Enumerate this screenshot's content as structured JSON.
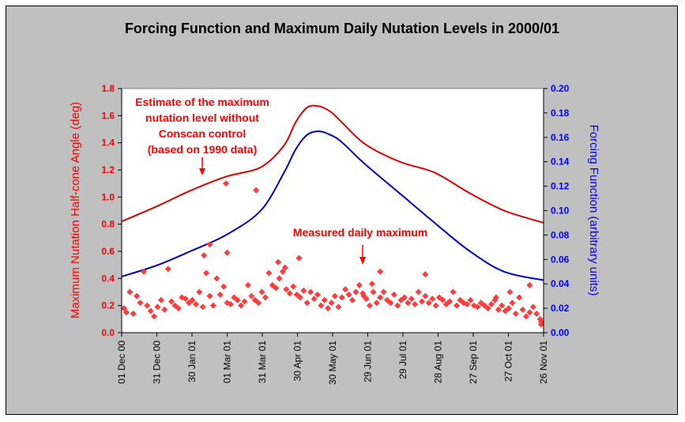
{
  "chart_data": {
    "type": "line",
    "title": "Forcing Function and Maximum Daily Nutation Levels in 2000/01",
    "ylabel_left": "Maximum Nutation Half-cone Angle (deg)",
    "ylabel_right": "Forcing Function (arbitrary units)",
    "ylim_left": [
      0,
      1.8
    ],
    "ylim_right": [
      0,
      0.2
    ],
    "yticks_left": [
      "0.0",
      "0.2",
      "0.4",
      "0.6",
      "0.8",
      "1.0",
      "1.2",
      "1.4",
      "1.6",
      "1.8"
    ],
    "yticks_right": [
      "0.00",
      "0.02",
      "0.04",
      "0.06",
      "0.08",
      "0.10",
      "0.12",
      "0.14",
      "0.16",
      "0.18",
      "0.20"
    ],
    "x_start": "2000-12-01",
    "x_end": "2001-11-30",
    "xticks": [
      "01 Dec 00",
      "31 Dec 00",
      "30 Jan 01",
      "01 Mar 01",
      "31 Mar 01",
      "30 Apr 01",
      "30 May 01",
      "29 Jun 01",
      "29 Jul 01",
      "28 Aug 01",
      "27 Sep 01",
      "27 Oct 01",
      "26 Nov 01"
    ],
    "grid": false,
    "colors": {
      "left_axis": "#ff0000",
      "right_axis": "#0000ff",
      "estimate": "#e00000",
      "forcing": "#0000cc",
      "measured": "#ff3b3b",
      "background": "#ffffff",
      "frame": "#c0c0c0"
    },
    "series": [
      {
        "axis": "left",
        "style": "line",
        "x": [
          "2000-12-01",
          "2000-12-31",
          "2001-01-30",
          "2001-03-01",
          "2001-03-31",
          "2001-04-20",
          "2001-04-30",
          "2001-05-10",
          "2001-05-20",
          "2001-05-30",
          "2001-06-09",
          "2001-06-29",
          "2001-07-29",
          "2001-08-28",
          "2001-09-27",
          "2001-10-27",
          "2001-11-30"
        ],
        "values": [
          0.82,
          0.93,
          1.05,
          1.15,
          1.22,
          1.38,
          1.55,
          1.66,
          1.67,
          1.63,
          1.55,
          1.39,
          1.26,
          1.18,
          1.03,
          0.9,
          0.81
        ]
      },
      {
        "axis": "right",
        "style": "line",
        "x": [
          "2000-12-01",
          "2000-12-31",
          "2001-01-30",
          "2001-03-01",
          "2001-03-31",
          "2001-04-20",
          "2001-04-30",
          "2001-05-10",
          "2001-05-20",
          "2001-05-30",
          "2001-06-09",
          "2001-06-29",
          "2001-07-29",
          "2001-08-28",
          "2001-09-27",
          "2001-10-27",
          "2001-11-30"
        ],
        "values": [
          0.046,
          0.055,
          0.067,
          0.08,
          0.1,
          0.131,
          0.15,
          0.162,
          0.165,
          0.162,
          0.156,
          0.138,
          0.114,
          0.09,
          0.067,
          0.05,
          0.043
        ]
      },
      {
        "axis": "left",
        "style": "scatter",
        "x": [
          "2000-12-02",
          "2000-12-05",
          "2000-12-08",
          "2000-12-11",
          "2000-12-14",
          "2000-12-17",
          "2000-12-20",
          "2000-12-23",
          "2000-12-26",
          "2000-12-29",
          "2001-01-01",
          "2001-01-04",
          "2001-01-07",
          "2001-01-10",
          "2001-01-13",
          "2001-01-16",
          "2001-01-19",
          "2001-01-22",
          "2001-01-25",
          "2001-01-28",
          "2001-01-31",
          "2001-02-03",
          "2001-02-06",
          "2001-02-09",
          "2001-02-12",
          "2001-02-15",
          "2001-02-18",
          "2001-02-21",
          "2001-02-24",
          "2001-02-27",
          "2001-03-02",
          "2001-03-05",
          "2001-03-08",
          "2001-03-11",
          "2001-03-14",
          "2001-03-17",
          "2001-03-20",
          "2001-03-23",
          "2001-03-26",
          "2001-03-29",
          "2001-04-01",
          "2001-04-04",
          "2001-04-07",
          "2001-04-10",
          "2001-04-13",
          "2001-04-16",
          "2001-04-19",
          "2001-04-22",
          "2001-04-25",
          "2001-04-28",
          "2001-05-01",
          "2001-05-04",
          "2001-05-07",
          "2001-05-10",
          "2001-05-13",
          "2001-05-16",
          "2001-05-19",
          "2001-05-22",
          "2001-05-25",
          "2001-05-28",
          "2001-05-31",
          "2001-06-03",
          "2001-06-06",
          "2001-06-09",
          "2001-06-12",
          "2001-06-15",
          "2001-06-18",
          "2001-06-21",
          "2001-06-24",
          "2001-06-27",
          "2001-06-30",
          "2001-07-03",
          "2001-07-06",
          "2001-07-09",
          "2001-07-12",
          "2001-07-15",
          "2001-07-18",
          "2001-07-21",
          "2001-07-24",
          "2001-07-27",
          "2001-07-30",
          "2001-08-02",
          "2001-08-05",
          "2001-08-08",
          "2001-08-11",
          "2001-08-14",
          "2001-08-17",
          "2001-08-20",
          "2001-08-23",
          "2001-08-26",
          "2001-08-29",
          "2001-09-01",
          "2001-09-04",
          "2001-09-07",
          "2001-09-10",
          "2001-09-13",
          "2001-09-16",
          "2001-09-19",
          "2001-09-22",
          "2001-09-25",
          "2001-09-28",
          "2001-10-01",
          "2001-10-04",
          "2001-10-07",
          "2001-10-10",
          "2001-10-13",
          "2001-10-16",
          "2001-10-19",
          "2001-10-22",
          "2001-10-25",
          "2001-10-28",
          "2001-10-31",
          "2001-11-03",
          "2001-11-06",
          "2001-11-09",
          "2001-11-12",
          "2001-11-15",
          "2001-11-18",
          "2001-11-21",
          "2001-11-24",
          "2001-11-27",
          "2001-11-29",
          "2001-03-01",
          "2001-03-27",
          "2001-02-15",
          "2001-03-02",
          "2001-02-10",
          "2001-07-12",
          "2001-08-20",
          "2001-04-15",
          "2001-04-21",
          "2001-05-03",
          "2001-06-28",
          "2001-07-05",
          "2001-10-20",
          "2001-11-01",
          "2001-11-18",
          "2001-12-01"
        ],
        "values": [
          0.18,
          0.15,
          0.3,
          0.14,
          0.27,
          0.22,
          0.45,
          0.2,
          0.16,
          0.12,
          0.19,
          0.24,
          0.17,
          0.47,
          0.23,
          0.2,
          0.18,
          0.26,
          0.25,
          0.22,
          0.24,
          0.21,
          0.3,
          0.19,
          0.44,
          0.27,
          0.2,
          0.4,
          0.28,
          0.34,
          0.22,
          0.21,
          0.26,
          0.24,
          0.2,
          0.23,
          0.35,
          0.27,
          0.24,
          0.22,
          0.3,
          0.26,
          0.44,
          0.35,
          0.33,
          0.4,
          0.45,
          0.32,
          0.29,
          0.34,
          0.28,
          0.26,
          0.31,
          0.22,
          0.3,
          0.25,
          0.28,
          0.2,
          0.24,
          0.18,
          0.22,
          0.27,
          0.19,
          0.26,
          0.32,
          0.28,
          0.24,
          0.3,
          0.35,
          0.29,
          0.25,
          0.2,
          0.3,
          0.22,
          0.26,
          0.3,
          0.24,
          0.22,
          0.28,
          0.2,
          0.24,
          0.26,
          0.22,
          0.25,
          0.21,
          0.3,
          0.23,
          0.27,
          0.22,
          0.25,
          0.2,
          0.26,
          0.24,
          0.21,
          0.23,
          0.3,
          0.2,
          0.24,
          0.22,
          0.21,
          0.24,
          0.2,
          0.19,
          0.22,
          0.2,
          0.18,
          0.21,
          0.24,
          0.17,
          0.2,
          0.16,
          0.18,
          0.22,
          0.14,
          0.26,
          0.17,
          0.12,
          0.15,
          0.19,
          0.14,
          0.1,
          0.06,
          1.1,
          1.05,
          0.65,
          0.59,
          0.57,
          0.45,
          0.43,
          0.52,
          0.48,
          0.55,
          0.27,
          0.36,
          0.26,
          0.3,
          0.35,
          0.08
        ]
      }
    ],
    "annotations": [
      {
        "lines": [
          "Estimate of the maximum",
          "nutation level without",
          "Conscan control",
          "(based on 1990 data)"
        ]
      },
      {
        "lines": [
          "Measured daily maximum"
        ]
      }
    ]
  }
}
